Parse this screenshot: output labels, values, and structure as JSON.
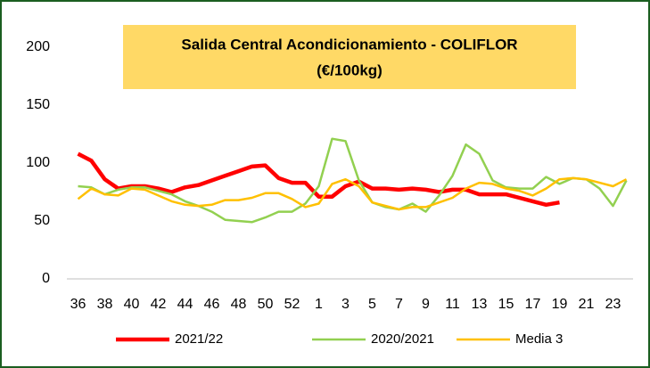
{
  "chart_data": {
    "type": "line",
    "title": "Salida Central Acondicionamiento  - COLIFLOR",
    "subtitle": "(€/100kg)",
    "categories": [
      "36",
      null,
      "38",
      null,
      "40",
      null,
      "42",
      null,
      "44",
      null,
      "46",
      null,
      "48",
      null,
      "50",
      null,
      "52",
      null,
      "1",
      null,
      "3",
      null,
      "5",
      null,
      "7",
      null,
      "9",
      null,
      "11",
      null,
      "13",
      null,
      "15",
      null,
      "17",
      null,
      "19",
      null,
      "21",
      null,
      "23",
      null
    ],
    "series": [
      {
        "name": "2021/22",
        "color": "#ff0000",
        "values": [
          108,
          102,
          86,
          78,
          80,
          80,
          78,
          75,
          79,
          81,
          85,
          89,
          93,
          97,
          98,
          87,
          83,
          83,
          71,
          71,
          80,
          84,
          78,
          78,
          77,
          78,
          77,
          75,
          77,
          77,
          73,
          73,
          73,
          70,
          67,
          64,
          66,
          null,
          null,
          null,
          null,
          null
        ]
      },
      {
        "name": "2020/2021",
        "color": "#92d050",
        "values": [
          80,
          79,
          73,
          77,
          79,
          79,
          76,
          73,
          67,
          63,
          58,
          51,
          50,
          49,
          53,
          58,
          58,
          65,
          80,
          121,
          119,
          85,
          66,
          62,
          60,
          65,
          58,
          72,
          89,
          116,
          108,
          85,
          79,
          78,
          78,
          88,
          82,
          87,
          86,
          78,
          63,
          85
        ]
      },
      {
        "name": "Media 3",
        "color": "#ffc000",
        "values": [
          69,
          78,
          73,
          72,
          78,
          77,
          72,
          67,
          64,
          63,
          64,
          68,
          68,
          70,
          74,
          74,
          69,
          62,
          65,
          82,
          86,
          80,
          66,
          63,
          60,
          62,
          62,
          66,
          70,
          78,
          83,
          82,
          78,
          76,
          72,
          78,
          86,
          87,
          86,
          83,
          80,
          86
        ]
      }
    ],
    "ylim": [
      0,
      200
    ],
    "yticks": [
      0,
      50,
      100,
      150,
      200
    ],
    "grid": false,
    "legend": "bottom"
  }
}
